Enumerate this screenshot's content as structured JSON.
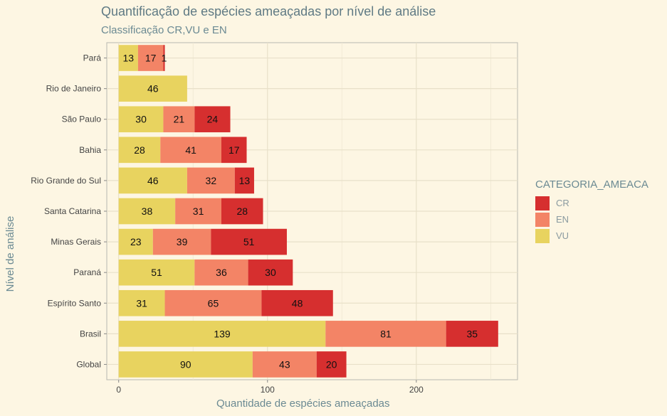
{
  "chart_data": {
    "type": "bar",
    "orientation": "horizontal",
    "stacked": true,
    "title": "Quantificação de espécies ameaçadas por nível de análise",
    "subtitle": "Classificação CR,VU e EN",
    "xlabel": "Quantidade de espécies ameaçadas",
    "ylabel": "Nível de análise",
    "xlim": [
      -8,
      268
    ],
    "xticks": [
      0,
      100,
      200
    ],
    "grid": true,
    "legend_position": "right",
    "legend_title": "CATEGORIA_AMEACA",
    "categories": [
      "Pará",
      "Rio de Janeiro",
      "São Paulo",
      "Bahia",
      "Rio Grande do Sul",
      "Santa Catarina",
      "Minas Gerais",
      "Paraná",
      "Espírito Santo",
      "Brasil",
      "Global"
    ],
    "series": [
      {
        "name": "VU",
        "color": "#e8d35f",
        "values": [
          13,
          46,
          30,
          28,
          46,
          38,
          23,
          51,
          31,
          139,
          90
        ]
      },
      {
        "name": "EN",
        "color": "#f38466",
        "values": [
          17,
          0,
          21,
          41,
          32,
          31,
          39,
          36,
          65,
          81,
          43
        ]
      },
      {
        "name": "CR",
        "color": "#d62f2f",
        "values": [
          1,
          0,
          24,
          17,
          13,
          28,
          51,
          30,
          48,
          35,
          20
        ]
      }
    ],
    "legend_order": [
      "CR",
      "EN",
      "VU"
    ]
  }
}
